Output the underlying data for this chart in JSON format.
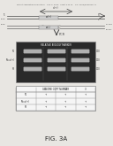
{
  "bg_color": "#e8e6e2",
  "header_text": "Patent Application Publication    Feb. 5, 2009   Sheet 9 of 13    U.S. 2009/0081846 A1",
  "fig_label": "FIG. 3A",
  "gel_bg": "#2a2a2a",
  "arrow_color": "#444444",
  "line_color": "#666666",
  "band_color": "#c0c0c0",
  "white": "#ffffff",
  "dark_text": "#222222"
}
